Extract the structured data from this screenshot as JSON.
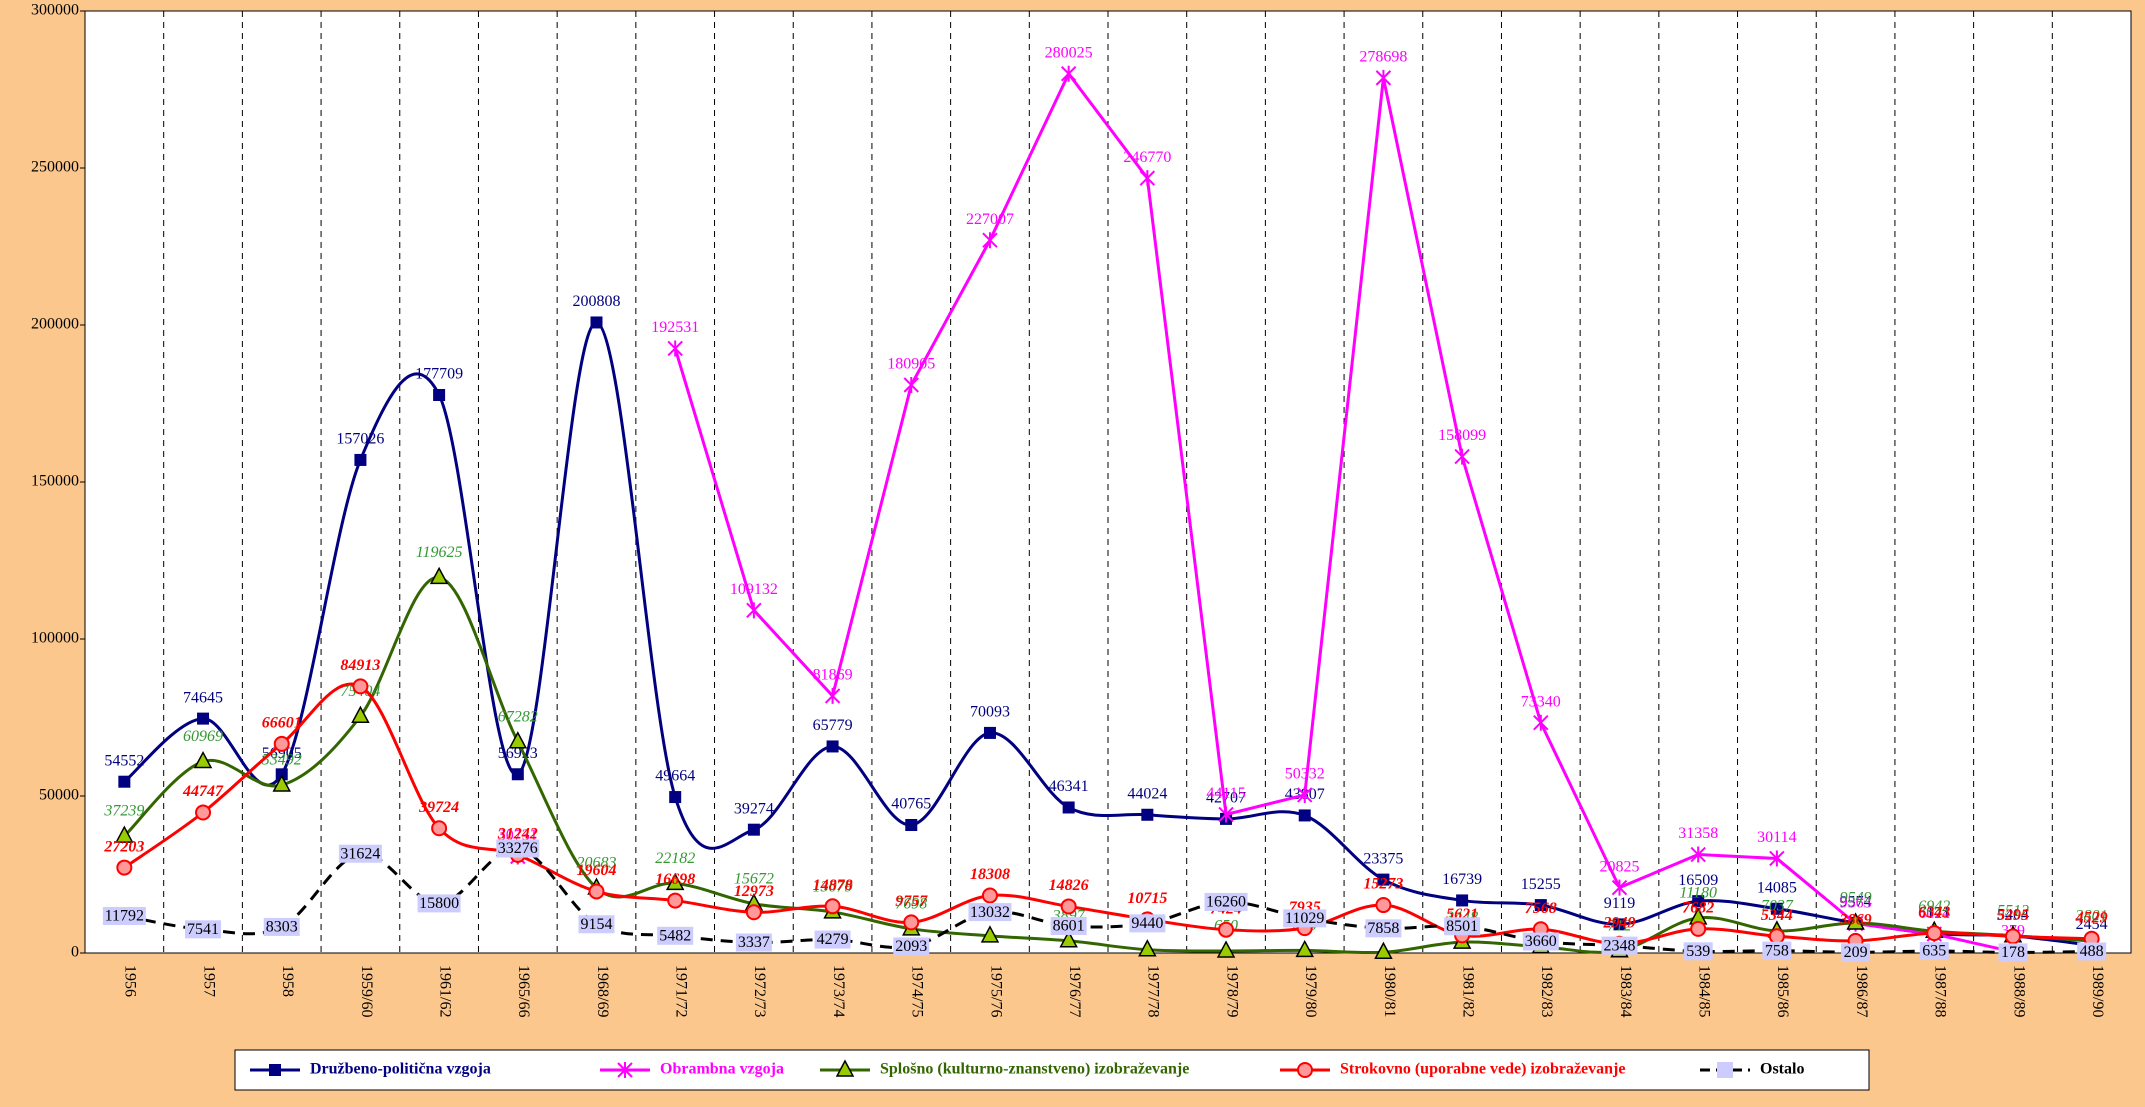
{
  "chart_data": {
    "type": "line",
    "categories": [
      "1956",
      "1957",
      "1958",
      "1959/60",
      "1961/62",
      "1965/66",
      "1968/69",
      "1971/72",
      "1972/73",
      "1973/74",
      "1974/75",
      "1975/76",
      "1976/77",
      "1977/78",
      "1978/79",
      "1979/80",
      "1980/81",
      "1981/82",
      "1982/83",
      "1983/84",
      "1984/85",
      "1985/86",
      "1986/87",
      "1987/88",
      "1988/89",
      "1989/90"
    ],
    "ylim": [
      0,
      300000
    ],
    "yticks": [
      0,
      50000,
      100000,
      150000,
      200000,
      250000,
      300000
    ],
    "series": [
      {
        "name": "Družbeno-politična vzgoja",
        "color": "#000080",
        "marker": "square",
        "smooth": true,
        "values": [
          54552,
          74645,
          56905,
          157026,
          177709,
          56923,
          200808,
          49664,
          39274,
          65779,
          40765,
          70093,
          46341,
          44024,
          42707,
          43807,
          23375,
          16739,
          15255,
          9119,
          16509,
          14085,
          9574,
          6171,
          5404,
          2454
        ]
      },
      {
        "name": "Obrambna vzgoja",
        "color": "#ff00ff",
        "marker": "x",
        "smooth": false,
        "values": [
          null,
          null,
          null,
          null,
          null,
          30731,
          null,
          192531,
          109132,
          81869,
          180905,
          227007,
          280025,
          246770,
          44115,
          50332,
          278698,
          158099,
          73340,
          20825,
          31358,
          30114,
          9363,
          6024,
          379,
          null
        ]
      },
      {
        "name": "Splošno (kulturno-znanstveno) izobraževanje",
        "color": "#336600",
        "marker": "triangle",
        "smooth": true,
        "values": [
          37239,
          60969,
          53492,
          75404,
          119625,
          67282,
          20683,
          22182,
          15672,
          13079,
          7698,
          5468,
          3897,
          1038,
          650,
          823,
          241,
          3448,
          2000,
          712,
          11180,
          7037,
          9549,
          6942,
          5512,
          3801
        ],
        "value_labels": [
          "37239",
          "60969",
          "53492",
          "75404",
          "119625",
          "67282",
          "20683",
          "22182",
          "15672",
          "13079",
          "7698",
          "5468",
          "3897",
          "1038",
          "650",
          "823",
          "241",
          "3448",
          null,
          "712",
          "11180",
          "7037",
          "9549",
          "6942",
          "5512",
          "3801"
        ]
      },
      {
        "name": "Strokovno (uporabne vede) izobraževanje",
        "color": "#ff0000",
        "marker": "circle",
        "smooth": true,
        "values": [
          27203,
          44747,
          66601,
          84913,
          39724,
          31242,
          19604,
          16698,
          12973,
          14878,
          9757,
          18308,
          14826,
          10715,
          7424,
          7935,
          15273,
          5621,
          7568,
          2949,
          7682,
          5344,
          3869,
          6343,
          5295,
          4529
        ]
      },
      {
        "name": "Ostalo",
        "color": "#000000",
        "marker": "box",
        "smooth": true,
        "dashed": true,
        "values": [
          11792,
          7541,
          8303,
          31624,
          15800,
          33276,
          9154,
          5482,
          3337,
          4279,
          2093,
          13032,
          8601,
          9440,
          16260,
          11029,
          7858,
          8501,
          3660,
          2348,
          539,
          758,
          209,
          635,
          178,
          488
        ]
      }
    ]
  }
}
